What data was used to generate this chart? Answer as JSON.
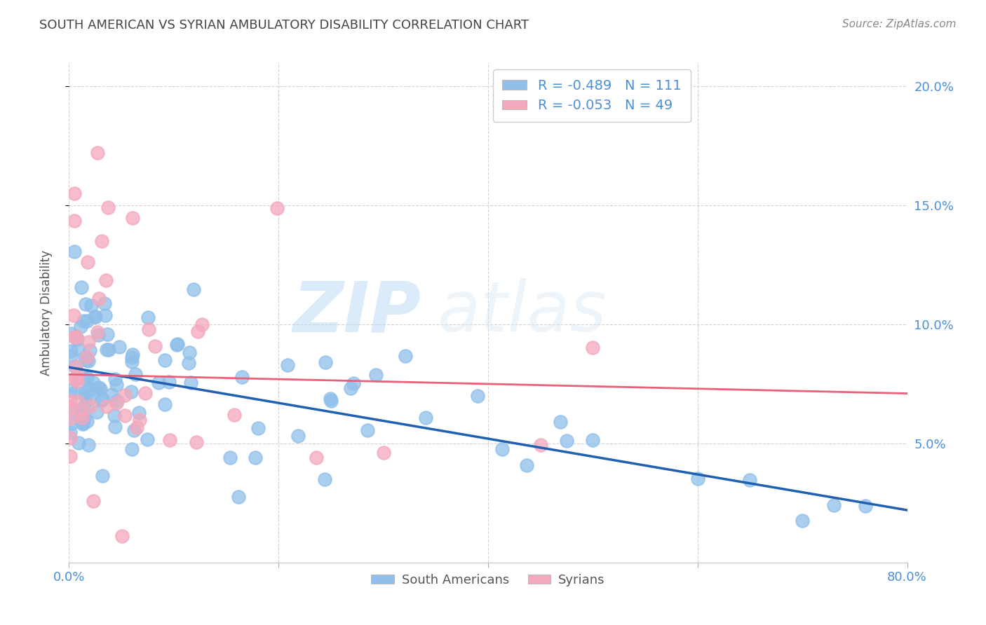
{
  "title": "SOUTH AMERICAN VS SYRIAN AMBULATORY DISABILITY CORRELATION CHART",
  "source": "Source: ZipAtlas.com",
  "ylabel": "Ambulatory Disability",
  "xlabel": "",
  "xlim": [
    0.0,
    0.8
  ],
  "ylim": [
    0.0,
    0.21
  ],
  "yticks": [
    0.05,
    0.1,
    0.15,
    0.2
  ],
  "ytick_labels": [
    "5.0%",
    "10.0%",
    "15.0%",
    "20.0%"
  ],
  "xticks": [
    0.0,
    0.2,
    0.4,
    0.6,
    0.8
  ],
  "xtick_labels": [
    "0.0%",
    "",
    "",
    "",
    "80.0%"
  ],
  "south_american_R": -0.489,
  "south_american_N": 111,
  "syrian_R": -0.053,
  "syrian_N": 49,
  "sa_color": "#8fbfea",
  "sy_color": "#f4a8bc",
  "sa_line_color": "#2060b0",
  "sy_line_color": "#e8607a",
  "title_color": "#444444",
  "axis_color": "#4a90d9",
  "watermark_zip": "ZIP",
  "watermark_atlas": "atlas",
  "background_color": "#ffffff",
  "grid_color": "#c8c8c8",
  "tick_color": "#4a90d9",
  "sa_line_intercept": 0.082,
  "sa_line_slope": -0.075,
  "sy_line_intercept": 0.079,
  "sy_line_slope": -0.01
}
